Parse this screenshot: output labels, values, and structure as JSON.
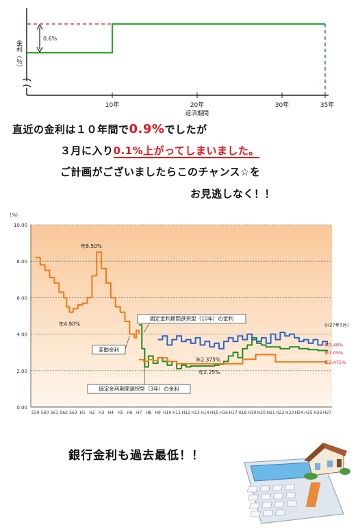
{
  "top_chart": {
    "ylabel": "金利（％）",
    "xlabel": "返済期間",
    "gap_label": "0.6%",
    "ticks": [
      "10年",
      "20年",
      "30年",
      "35年"
    ],
    "colors": {
      "line": "#22aa22",
      "dash_red": "#e03a3a",
      "dash_blue": "#3a6ad0"
    }
  },
  "message": {
    "line1_prefix": "直近の金利は１０年間で",
    "line1_rate": "0.9%",
    "line1_suffix": "でしたが",
    "line2_prefix": "３月に入り",
    "line2_rate": "0.1%",
    "line2_suffix": "上がってしまいました。",
    "line3": "ご計画がございましたらこのチャンス☆を",
    "line4": "お見逃しなく！！"
  },
  "chart_data": {
    "type": "line",
    "unit_label": "(%)",
    "ylim": [
      0,
      10
    ],
    "yticks": [
      "0.00",
      "2.00",
      "4.00",
      "6.00",
      "8.00",
      "10.00"
    ],
    "categories": [
      "S59",
      "S60",
      "S61",
      "S62",
      "S63",
      "H1",
      "H2",
      "H3",
      "H4",
      "H5",
      "H6",
      "H7",
      "H8",
      "H9",
      "H10",
      "H11",
      "H12",
      "H13",
      "H14",
      "H15",
      "H16",
      "H17",
      "H18",
      "H19",
      "H20",
      "H21",
      "H22",
      "H23",
      "H24",
      "H25",
      "H26",
      "H27"
    ],
    "grid": true,
    "series": [
      {
        "name": "変動金利",
        "color": "#ee7a1a",
        "points": [
          [
            0,
            8.2
          ],
          [
            0.5,
            7.8
          ],
          [
            1,
            7.5
          ],
          [
            1.5,
            7.1
          ],
          [
            2,
            6.8
          ],
          [
            2.5,
            6.3
          ],
          [
            3,
            6.0
          ],
          [
            3.3,
            5.5
          ],
          [
            3.6,
            5.2
          ],
          [
            4,
            5.4
          ],
          [
            4.5,
            5.6
          ],
          [
            5,
            5.7
          ],
          [
            5.5,
            6.0
          ],
          [
            6,
            7.2
          ],
          [
            6.5,
            8.5
          ],
          [
            7,
            7.6
          ],
          [
            7.5,
            6.8
          ],
          [
            8,
            6.0
          ],
          [
            8.5,
            5.5
          ],
          [
            9,
            5.2
          ],
          [
            9.5,
            4.7
          ],
          [
            10,
            4.0
          ],
          [
            10.5,
            3.8
          ],
          [
            10.7,
            4.2
          ],
          [
            11,
            4.0
          ]
        ]
      },
      {
        "name": "固定金利期間選択型（3年）の金利",
        "color": "#1f8c1f",
        "points": [
          [
            11,
            4.5
          ],
          [
            11.3,
            3.2
          ],
          [
            11.6,
            2.2
          ],
          [
            12,
            2.8
          ],
          [
            12.5,
            2.4
          ],
          [
            13,
            2.7
          ],
          [
            13.5,
            2.5
          ],
          [
            14,
            2.3
          ],
          [
            14.5,
            2.5
          ],
          [
            15,
            2.1
          ],
          [
            15.5,
            2.3
          ],
          [
            16,
            2.2
          ],
          [
            16.5,
            2.25
          ],
          [
            17,
            2.25
          ],
          [
            17.5,
            2.25
          ],
          [
            18,
            2.25
          ],
          [
            18.5,
            2.25
          ],
          [
            19,
            2.3
          ],
          [
            19.5,
            2.35
          ],
          [
            20,
            2.5
          ],
          [
            20.5,
            2.8
          ],
          [
            21,
            3.0
          ],
          [
            21.5,
            2.7
          ],
          [
            22,
            3.2
          ],
          [
            22.5,
            3.4
          ],
          [
            23,
            3.8
          ],
          [
            23.5,
            3.5
          ],
          [
            24,
            3.4
          ],
          [
            24.5,
            3.3
          ],
          [
            25,
            3.3
          ],
          [
            26,
            3.2
          ],
          [
            27,
            3.3
          ],
          [
            28,
            3.2
          ],
          [
            29,
            3.15
          ],
          [
            30,
            3.1
          ],
          [
            31,
            3.05
          ]
        ]
      },
      {
        "name": "固定金利期間選択型（10年）の金利",
        "color": "#2a64c8",
        "points": [
          [
            13,
            3.7
          ],
          [
            13.5,
            3.9
          ],
          [
            14,
            3.4
          ],
          [
            14.5,
            3.7
          ],
          [
            15,
            3.9
          ],
          [
            15.5,
            3.6
          ],
          [
            16,
            3.7
          ],
          [
            16.5,
            3.5
          ],
          [
            17,
            3.8
          ],
          [
            17.5,
            3.4
          ],
          [
            18,
            3.6
          ],
          [
            18.5,
            3.3
          ],
          [
            19,
            3.5
          ],
          [
            19.5,
            3.2
          ],
          [
            20,
            3.6
          ],
          [
            20.5,
            3.8
          ],
          [
            21,
            3.6
          ],
          [
            21.5,
            3.9
          ],
          [
            22,
            3.7
          ],
          [
            22.5,
            4.0
          ],
          [
            23,
            3.7
          ],
          [
            23.5,
            3.6
          ],
          [
            24,
            3.8
          ],
          [
            24.5,
            3.5
          ],
          [
            25,
            4.0
          ],
          [
            25.5,
            3.7
          ],
          [
            26,
            4.1
          ],
          [
            26.5,
            3.9
          ],
          [
            27,
            4.0
          ],
          [
            27.5,
            3.8
          ],
          [
            28,
            3.6
          ],
          [
            28.5,
            3.7
          ],
          [
            29,
            3.5
          ],
          [
            29.5,
            3.7
          ],
          [
            30,
            3.4
          ],
          [
            30.5,
            3.6
          ],
          [
            31,
            3.4
          ]
        ]
      },
      {
        "name": "",
        "color": "#ee7a1a",
        "points": [
          [
            11,
            2.6
          ],
          [
            11.5,
            2.5
          ],
          [
            12,
            2.6
          ],
          [
            12.5,
            2.55
          ],
          [
            13,
            2.7
          ],
          [
            14,
            2.5
          ],
          [
            15,
            2.375
          ],
          [
            16,
            2.375
          ],
          [
            17,
            2.375
          ],
          [
            18,
            2.375
          ],
          [
            19,
            2.375
          ],
          [
            20,
            2.375
          ],
          [
            21,
            2.375
          ],
          [
            21.8,
            2.375
          ],
          [
            22,
            2.62
          ],
          [
            23,
            2.62
          ],
          [
            23.4,
            2.875
          ],
          [
            24,
            2.875
          ],
          [
            25,
            2.875
          ],
          [
            25.5,
            2.475
          ],
          [
            26,
            2.475
          ],
          [
            31,
            2.475
          ]
        ]
      }
    ],
    "annotations": {
      "peak": "年8.50%",
      "low": "年4.90%",
      "fixed10_label": "固定金利期間選択型（10年）の金利",
      "variable_label": "変動金利",
      "fixed3_label": "固定金利期間選択型（3年）の金利",
      "val_2375": "年2.375%",
      "val_225": "年2.25%",
      "date_label": "(H27年3月)",
      "end_fixed10": "年3.40%",
      "end_fixed3": "年3.05%",
      "end_variable": "年2.475%"
    },
    "colors": {
      "bg_top": "#f9c899",
      "bg_bottom": "#fff6ec",
      "end_label": "#e8141d"
    }
  },
  "bottom": {
    "text": "銀行金利も過去最低！！"
  }
}
